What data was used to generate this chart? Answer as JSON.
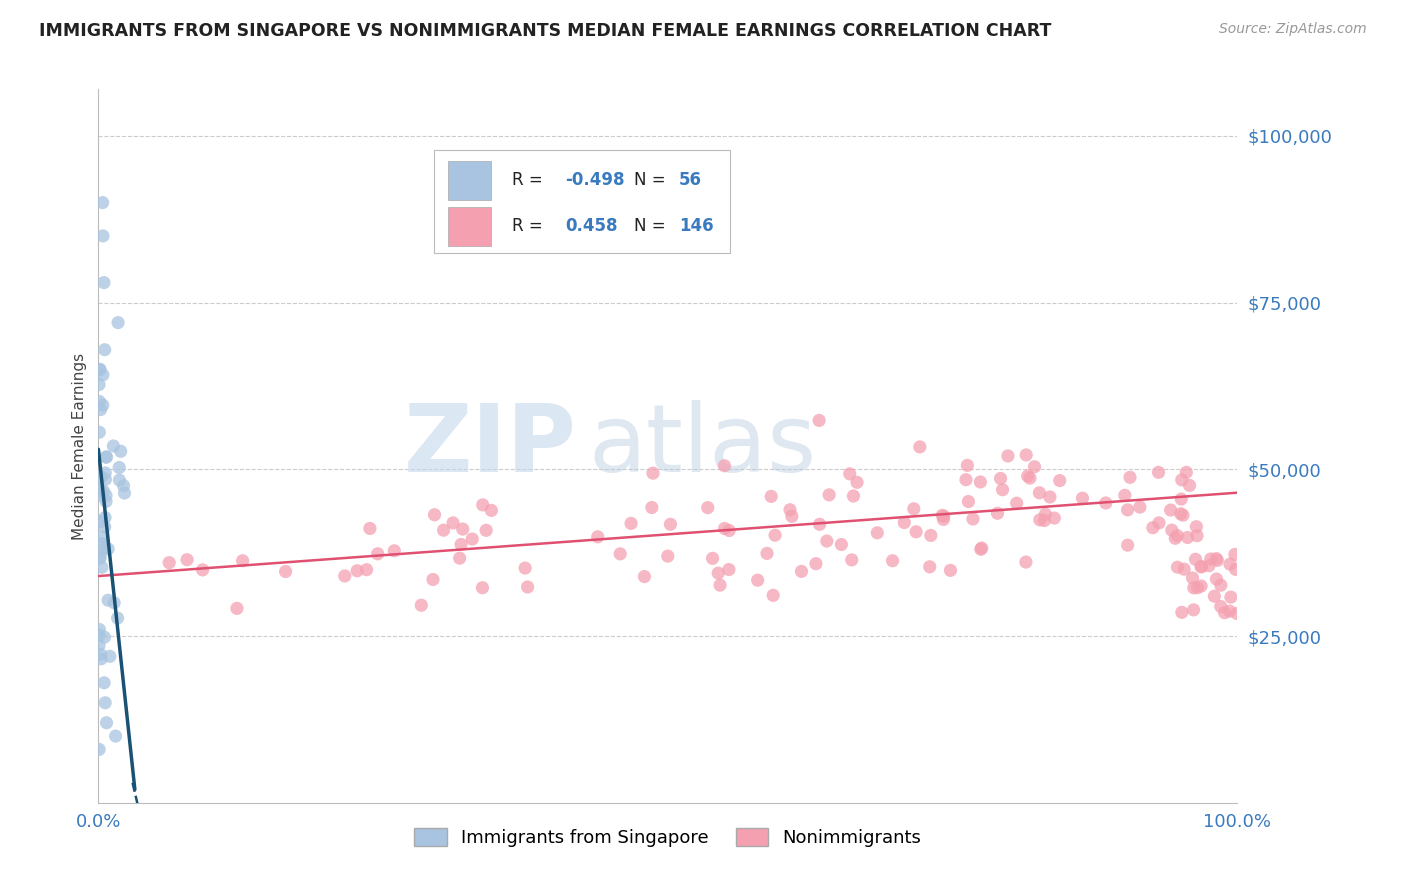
{
  "title": "IMMIGRANTS FROM SINGAPORE VS NONIMMIGRANTS MEDIAN FEMALE EARNINGS CORRELATION CHART",
  "source": "Source: ZipAtlas.com",
  "ylabel": "Median Female Earnings",
  "xlim": [
    0,
    100
  ],
  "ylim": [
    0,
    107000
  ],
  "yticks": [
    25000,
    50000,
    75000,
    100000
  ],
  "ytick_labels": [
    "$25,000",
    "$50,000",
    "$75,000",
    "$100,000"
  ],
  "blue_R": "-0.498",
  "blue_N": "56",
  "pink_R": "0.458",
  "pink_N": "146",
  "blue_color": "#a8c4e0",
  "pink_color": "#f4a0b0",
  "blue_line_color": "#1a5276",
  "pink_line_color": "#e05070",
  "background_color": "#ffffff",
  "watermark_zip": "ZIP",
  "watermark_atlas": "atlas",
  "grid_color": "#cccccc",
  "legend_text_color": "#3a7bbf",
  "legend_label_color": "#333333"
}
